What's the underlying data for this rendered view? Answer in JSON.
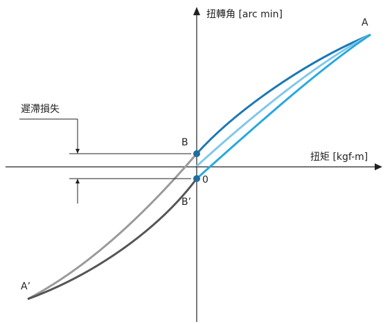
{
  "axes": {
    "y_label": "扭轉角 [arc min]",
    "x_label": "扭矩 [kgf-m]"
  },
  "points": {
    "A": "A",
    "A_prime": "A’",
    "B": "B",
    "B_prime": "B’",
    "O": "0"
  },
  "hysteresis_loss_label": "遲滯損失",
  "colors": {
    "axis": "#222222",
    "upper_loading": "#1a78b4",
    "upper_unloading": "#7fc8ea",
    "upper_inner": "#28a8e0",
    "lower_loading": "#555555",
    "lower_unloading": "#9a9a9a",
    "point_marker": "#1f6e9e"
  }
}
